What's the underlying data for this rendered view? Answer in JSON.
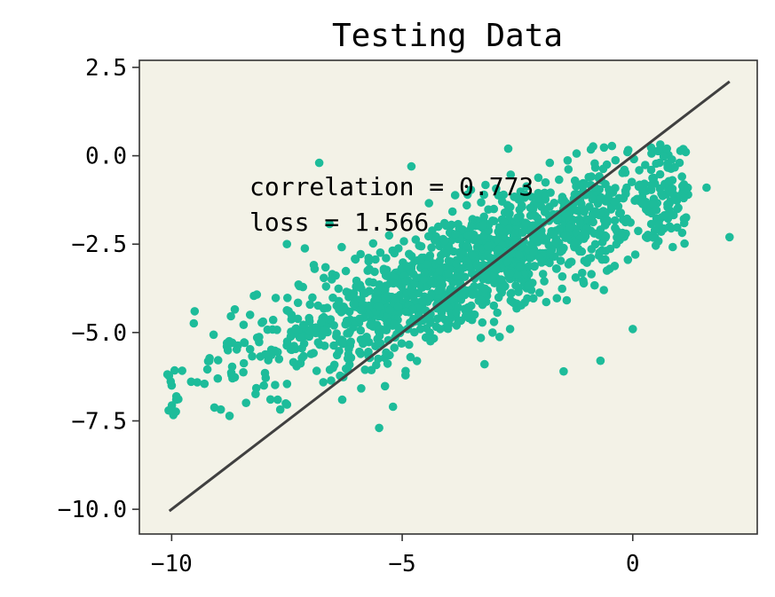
{
  "chart_data": {
    "type": "scatter",
    "title": "Testing Data",
    "xlabel": "",
    "ylabel": "",
    "xlim": [
      -10.7,
      2.7
    ],
    "ylim": [
      -10.7,
      2.7
    ],
    "x_ticks": [
      -10,
      -5,
      0
    ],
    "x_tick_labels": [
      "−10",
      "−5",
      "0"
    ],
    "y_ticks": [
      2.5,
      0.0,
      -2.5,
      -5.0,
      -7.5,
      -10.0
    ],
    "y_tick_labels": [
      "2.5",
      "0.0",
      "−2.5",
      "−5.0",
      "−7.5",
      "−10.0"
    ],
    "grid": false,
    "colors": {
      "plot_background": "#f3f2e7",
      "points": "#1dbc9a",
      "line": "#404040",
      "axes": "#333333"
    },
    "annotations": {
      "correlation": "correlation = 0.773",
      "loss": "loss = 1.566"
    },
    "line": {
      "x": [
        -10.05,
        2.1
      ],
      "y": [
        -10.05,
        2.1
      ]
    },
    "series": [
      {
        "point_count": 1400,
        "cloud_summary": {
          "x_range": [
            -10.2,
            2.1
          ],
          "y_range": [
            -7.7,
            0.4
          ],
          "approx_relation": "y ≈ 0.5 * x - 1.4 with spread"
        },
        "points": [
          [
            -10.0,
            -6.5
          ],
          [
            -9.9,
            -6.9
          ],
          [
            -9.5,
            -4.4
          ],
          [
            -9.0,
            -6.3
          ],
          [
            -8.8,
            -5.3
          ],
          [
            -8.7,
            -6.2
          ],
          [
            -8.3,
            -4.5
          ],
          [
            -8.0,
            -6.5
          ],
          [
            -7.7,
            -6.9
          ],
          [
            -7.5,
            -2.5
          ],
          [
            -7.4,
            -4.5
          ],
          [
            -6.9,
            -3.2
          ],
          [
            -6.8,
            -0.2
          ],
          [
            -6.5,
            -6.0
          ],
          [
            -6.3,
            -6.9
          ],
          [
            -6.0,
            -3.7
          ],
          [
            -5.5,
            -7.7
          ],
          [
            -5.2,
            -7.1
          ],
          [
            -4.8,
            -0.3
          ],
          [
            -4.4,
            -5.0
          ],
          [
            -4.0,
            -4.2
          ],
          [
            -3.6,
            -1.4
          ],
          [
            -3.0,
            -2.6
          ],
          [
            -2.7,
            0.2
          ],
          [
            -2.2,
            -3.8
          ],
          [
            -1.8,
            -0.2
          ],
          [
            -1.5,
            -6.1
          ],
          [
            -1.0,
            -1.8
          ],
          [
            -0.7,
            -5.8
          ],
          [
            -0.5,
            -3.2
          ],
          [
            -0.2,
            -1.2
          ],
          [
            0.0,
            -4.9
          ],
          [
            0.4,
            -0.4
          ],
          [
            0.8,
            -2.0
          ],
          [
            1.2,
            -1.1
          ],
          [
            1.6,
            -0.9
          ],
          [
            2.1,
            -2.3
          ]
        ]
      }
    ]
  }
}
